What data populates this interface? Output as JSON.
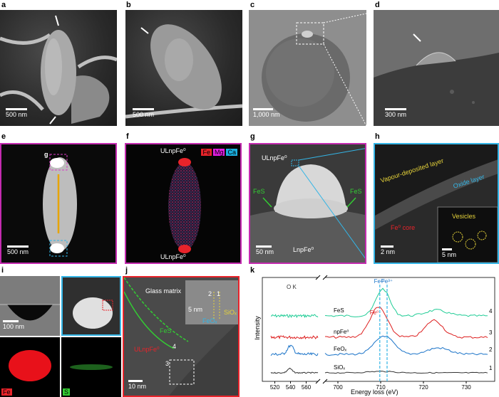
{
  "panels": {
    "a": {
      "label": "a",
      "scale": "500 nm"
    },
    "b": {
      "label": "b",
      "scale": "500 nm"
    },
    "c": {
      "label": "c",
      "scale": "1,000 nm"
    },
    "d": {
      "label": "d",
      "scale": "300 nm"
    },
    "e": {
      "label": "e",
      "scale": "500 nm",
      "inset_tag": "g"
    },
    "f": {
      "label": "f",
      "top_label": "ULnpFe⁰",
      "bottom_label": "ULnpFe⁰",
      "legend": [
        {
          "name": "Fe",
          "color": "#e8232a"
        },
        {
          "name": "Mg",
          "color": "#e61ee6"
        },
        {
          "name": "Ca",
          "color": "#1ab0e0"
        }
      ]
    },
    "g": {
      "label": "g",
      "scale": "50 nm",
      "ulnp": "ULnpFe⁰",
      "fes_left": "FeS",
      "fes_right": "FeS",
      "lnp": "LnpFe⁰"
    },
    "h": {
      "label": "h",
      "scale": "2 nm",
      "vapour": "Vapour-deposited layer",
      "oxide": "Oxide layer",
      "core": "Fe⁰ core",
      "vesicles": "Vesicles",
      "inset_scale": "5 nm"
    },
    "i": {
      "label": "i",
      "scale": "100 nm",
      "fe_tag": "Fe",
      "s_tag": "S"
    },
    "j": {
      "label": "j",
      "scale": "10 nm",
      "glass": "Glass matrix",
      "fes": "FeS",
      "ulnp": "ULnpFe⁰",
      "n4": "4",
      "n3": "3",
      "n2": "2",
      "n1": "1",
      "inset_scale": "5 nm",
      "sio": "SiOₓ",
      "feo": "FeOₓ"
    },
    "k": {
      "label": "k"
    }
  },
  "chart_data": {
    "type": "line",
    "xlabel": "Energy loss (eV)",
    "ylabel": "Intensity",
    "axis_break": true,
    "x_left_ticks": [
      520,
      540,
      560
    ],
    "x_right_ticks": [
      700,
      710,
      720,
      730
    ],
    "edge_label": "O K",
    "markers": [
      {
        "label": "Fe²⁺",
        "x": 709.8
      },
      {
        "label": "Fe³⁺",
        "x": 711.5
      },
      {
        "label": "Fe⁰",
        "x": 708.5
      }
    ],
    "series": [
      {
        "name": "FeS",
        "number": "4",
        "color": "#1fcc95"
      },
      {
        "name": "npFe⁰",
        "number": "3",
        "color": "#dd1f1f"
      },
      {
        "name": "FeOₓ",
        "number": "2",
        "color": "#1a73c8"
      },
      {
        "name": "SiOₓ",
        "number": "1",
        "color": "#333333"
      }
    ]
  }
}
